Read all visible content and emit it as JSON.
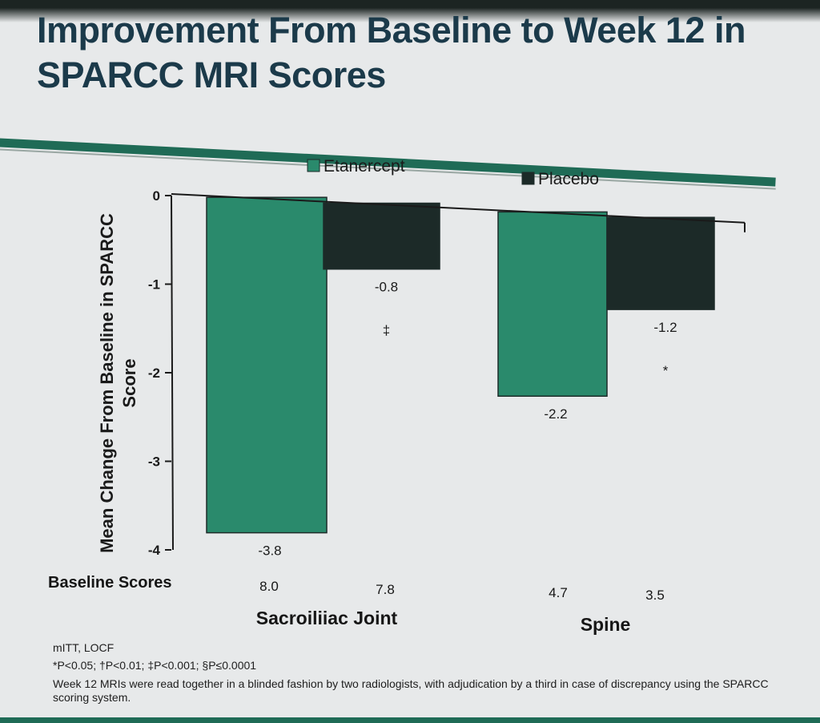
{
  "slide": {
    "title": "Improvement From Baseline to Week 12 in SPARCC MRI Scores",
    "rule_color": "#1f6b56"
  },
  "chart_data": {
    "type": "bar",
    "categories": [
      "Sacroiliiac Joint",
      "Spine"
    ],
    "series": [
      {
        "name": "Etanercept",
        "color": "#2a8a6c",
        "values": [
          -3.8,
          -2.2
        ],
        "labels": [
          "-3.8",
          "-2.2"
        ]
      },
      {
        "name": "Placebo",
        "color": "#1c2a28",
        "values": [
          -0.8,
          -1.2
        ],
        "labels": [
          "-0.8",
          "-1.2"
        ]
      }
    ],
    "significance_marks": {
      "Placebo": [
        "‡",
        "*"
      ]
    },
    "ylabel": "Mean Change From Baseline in SPARCC Score",
    "ylim": [
      -4,
      0
    ],
    "yticks": [
      "0",
      "-1",
      "-2",
      "-3",
      "-4"
    ],
    "legend": {
      "placement": "top"
    },
    "baseline_scores": {
      "label": "Baseline Scores",
      "values": [
        "8.0",
        "7.8",
        "4.7",
        "3.5"
      ]
    }
  },
  "footnotes": {
    "line1": "mITT, LOCF",
    "line2": "*P<0.05; †P<0.01; ‡P<0.001; §P≤0.0001",
    "line3": "Week 12 MRIs were read together in a blinded fashion by two radiologists, with adjudication by a third in case of discrepancy using the SPARCC scoring system."
  }
}
